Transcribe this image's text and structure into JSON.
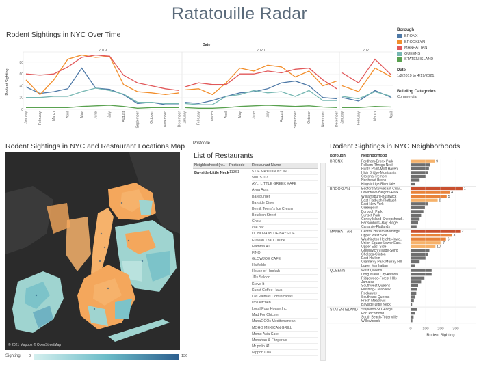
{
  "title": "Ratatouille Radar",
  "line_section": {
    "title": "Rodent Sightings in NYC Over Time",
    "date_header": "Date",
    "ylabel": "Rodent Sighting",
    "years": [
      "2019",
      "2020",
      "2021"
    ],
    "months": [
      "January",
      "February",
      "March",
      "April",
      "May",
      "June",
      "July",
      "August",
      "September",
      "October",
      "November",
      "December"
    ],
    "months_2021": [
      "January",
      "February",
      "March",
      "April"
    ],
    "yticks": [
      "0",
      "20",
      "40",
      "60",
      "80"
    ]
  },
  "legend": {
    "title": "Borough",
    "items": [
      {
        "label": "BRONX",
        "color": "#4e79a7"
      },
      {
        "label": "BROOKLYN",
        "color": "#f28e2b"
      },
      {
        "label": "MANHATTAN",
        "color": "#e15759"
      },
      {
        "label": "QUEENS",
        "color": "#76b7b2"
      },
      {
        "label": "STATEN ISLAND",
        "color": "#59a14f"
      }
    ]
  },
  "filters": {
    "date_label": "Date",
    "date_value": "1/2/2019 to 4/19/2021",
    "building_label": "Building Categories",
    "building_value": "Commercial"
  },
  "chart_data": [
    {
      "type": "line",
      "title": "Rodent Sightings in NYC Over Time",
      "ylabel": "Rodent Sighting",
      "ylim": [
        0,
        95
      ],
      "x": [
        "2019-01",
        "2019-02",
        "2019-03",
        "2019-04",
        "2019-05",
        "2019-06",
        "2019-07",
        "2019-08",
        "2019-09",
        "2019-10",
        "2019-11",
        "2019-12",
        "2020-01",
        "2020-02",
        "2020-03",
        "2020-04",
        "2020-05",
        "2020-06",
        "2020-07",
        "2020-08",
        "2020-09",
        "2020-10",
        "2020-11",
        "2020-12",
        "2021-01",
        "2021-02",
        "2021-03",
        "2021-04"
      ],
      "series": [
        {
          "name": "BRONX",
          "values": [
            38,
            27,
            30,
            35,
            70,
            36,
            34,
            25,
            10,
            12,
            8,
            8,
            12,
            10,
            15,
            22,
            28,
            30,
            35,
            45,
            48,
            40,
            20,
            18,
            20,
            14,
            32,
            20
          ]
        },
        {
          "name": "BROOKLYN",
          "values": [
            50,
            25,
            50,
            85,
            92,
            88,
            90,
            42,
            30,
            28,
            25,
            28,
            33,
            35,
            25,
            45,
            70,
            65,
            75,
            72,
            55,
            65,
            40,
            48,
            40,
            30,
            70,
            55
          ]
        },
        {
          "name": "MANHATTAN",
          "values": [
            60,
            58,
            60,
            72,
            88,
            92,
            90,
            58,
            45,
            40,
            35,
            32,
            38,
            45,
            42,
            42,
            60,
            60,
            65,
            62,
            68,
            70,
            50,
            35,
            62,
            45,
            85,
            58
          ]
        },
        {
          "name": "QUEENS",
          "values": [
            20,
            20,
            22,
            22,
            30,
            36,
            32,
            26,
            12,
            12,
            10,
            10,
            10,
            8,
            8,
            22,
            25,
            32,
            28,
            30,
            22,
            32,
            15,
            15,
            22,
            18,
            30,
            22
          ]
        },
        {
          "name": "STATEN ISLAND",
          "values": [
            3,
            3,
            3,
            3,
            5,
            6,
            7,
            5,
            2,
            3,
            3,
            3,
            3,
            2,
            2,
            3,
            5,
            6,
            7,
            6,
            5,
            6,
            4,
            3,
            3,
            3,
            5,
            4
          ]
        }
      ]
    },
    {
      "type": "bar",
      "title": "Rodent Sightings in NYC Neighborhoods",
      "xlabel": "Rodent Sighting",
      "xlim": [
        0,
        400
      ],
      "xticks": [
        0,
        100,
        200,
        300
      ],
      "groups": [
        {
          "borough": "BRONX",
          "items": [
            {
              "name": "Fordham-Bronx Park",
              "value": 160,
              "label": "9"
            },
            {
              "name": "Pelham-Throgs Neck",
              "value": 128
            },
            {
              "name": "Hunts Point-Mott Haven",
              "value": 122
            },
            {
              "name": "High Bridge-Morrisania",
              "value": 118
            },
            {
              "name": "Crotona-Tremont",
              "value": 100
            },
            {
              "name": "Northeast Bronx",
              "value": 60
            },
            {
              "name": "Kingsbridge-Riverdale",
              "value": 30
            }
          ]
        },
        {
          "borough": "BROOKLYN",
          "items": [
            {
              "name": "Bedford Stuyvesant-Crow..",
              "value": 345,
              "label": "1"
            },
            {
              "name": "Downtown-Heights-Park ..",
              "value": 260,
              "label": "4"
            },
            {
              "name": "Williamsburg-Bushwick",
              "value": 240,
              "label": "5"
            },
            {
              "name": "East Flatbush-Flatbush",
              "value": 180,
              "label": "8"
            },
            {
              "name": "East New York",
              "value": 118
            },
            {
              "name": "Greenpoint",
              "value": 95
            },
            {
              "name": "Borough Park",
              "value": 85
            },
            {
              "name": "Sunset Park",
              "value": 70
            },
            {
              "name": "Coney Island-Sheepshead..",
              "value": 60
            },
            {
              "name": "Bensonhurst-Bay Ridge",
              "value": 50
            },
            {
              "name": "Canarsie-Flatlands",
              "value": 40
            }
          ]
        },
        {
          "borough": "MANHATTAN",
          "items": [
            {
              "name": "Central Harlem-Morningsi..",
              "value": 330,
              "label": "2"
            },
            {
              "name": "Upper West Side",
              "value": 275,
              "label": "3"
            },
            {
              "name": "Washington Heights-Inwo..",
              "value": 235,
              "label": "6"
            },
            {
              "name": "Union Square-Lower East..",
              "value": 205,
              "label": "7"
            },
            {
              "name": "Upper East Side",
              "value": 165,
              "label": "10"
            },
            {
              "name": "Greenwich Village-Soho",
              "value": 125
            },
            {
              "name": "Chelsea-Clinton",
              "value": 115
            },
            {
              "name": "East Harlem",
              "value": 100
            },
            {
              "name": "Gramercy Park-Murray Hill",
              "value": 60
            },
            {
              "name": "Lower Manhattan",
              "value": 30
            }
          ]
        },
        {
          "borough": "QUEENS",
          "items": [
            {
              "name": "West Queens",
              "value": 140
            },
            {
              "name": "Long Island City-Astoria",
              "value": 140
            },
            {
              "name": "Ridgewood-Forest Hills",
              "value": 92
            },
            {
              "name": "Jamaica",
              "value": 70
            },
            {
              "name": "Southwest Queens",
              "value": 50
            },
            {
              "name": "Flushing-Clearview",
              "value": 42
            },
            {
              "name": "Rockaway",
              "value": 38
            },
            {
              "name": "Southeast Queens",
              "value": 32
            },
            {
              "name": "Fresh Meadows",
              "value": 22
            },
            {
              "name": "Bayside-Little Neck",
              "value": 10
            }
          ]
        },
        {
          "borough": "STATEN ISLAND",
          "items": [
            {
              "name": "Stapleton-St.George",
              "value": 42
            },
            {
              "name": "Port Richmond",
              "value": 30
            },
            {
              "name": "South Beach-Tottenville",
              "value": 20
            },
            {
              "name": "Willowbrook",
              "value": 12
            }
          ]
        }
      ]
    }
  ],
  "map_section": {
    "title": "Rodent Sightings in NYC and Restaurant Locations Map",
    "attribution": "© 2021 Mapbox © OpenStreetMap",
    "sighting_label": "Sighting",
    "sighting_min": "0",
    "sighting_max": "136"
  },
  "restaurants": {
    "postcode_top_label": "Postcode",
    "title": "List of Restaurants",
    "columns": [
      "Neighborhood (re..",
      "Postcode",
      "Restaurant Name"
    ],
    "neighborhood": "Bayside-Little Neck",
    "postcode": "11361",
    "names": [
      "5 DE MAYO IN NY INC",
      "50075707",
      "AVLI LITTLE GREEK KAFE",
      "Ayna Agra",
      "Bareburger",
      "Bayside Diner",
      "Ben & Teena's Ice Cream",
      "Bourbon Street",
      "Chou",
      "cue bar",
      "DONOVANS OF BAYSIDE",
      "Erawan Thai Cuisine",
      "Fiamma 41",
      "FINO",
      "GLOWJOE CAFE",
      "Hatfields",
      "House of Hookah",
      "JDs Saloon",
      "Krave It",
      "Kunst Coffee Haus",
      "Las Palmas Dominicanas",
      "lims kitchen",
      "Local Pour House,Inc.",
      "Mad For Chicken",
      "ManaGCOs Mediterranean",
      "MOHO MEXICAN GRILL",
      "Momo Asia Cafe",
      "Monahan & Fitzgerald",
      "Mr polio 41",
      "Nippon Cha"
    ]
  },
  "bar_section": {
    "title": "Rodent Sightings in NYC Neighborhoods",
    "borough_header": "Borough",
    "neighborhood_header": "Neighborhood",
    "xlabel": "Rodent Sighting"
  }
}
